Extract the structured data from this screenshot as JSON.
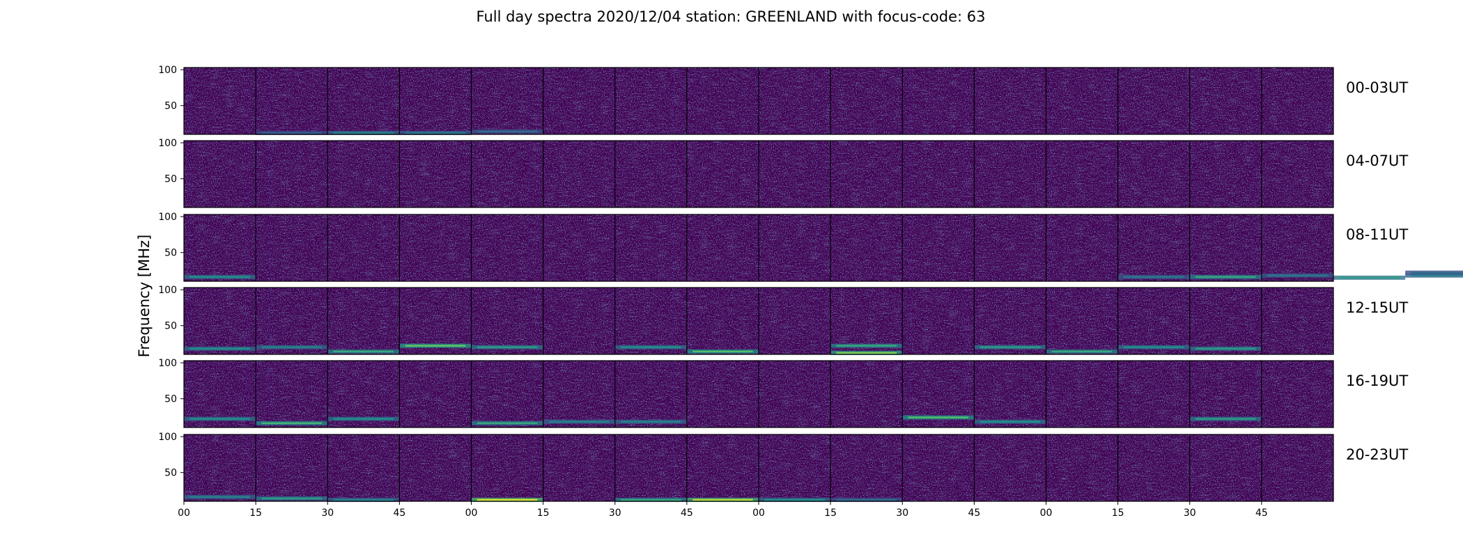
{
  "chart_data": {
    "type": "heatmap",
    "title": "Full day spectra 2020/12/04 station: GREENLAND with focus-code: 63",
    "ylabel": "Frequency [MHz]",
    "xlabel": "",
    "ylim": [
      10,
      103
    ],
    "y_ticks": [
      100,
      50
    ],
    "x_ticks": [
      "00",
      "15",
      "30",
      "45",
      "00",
      "15",
      "30",
      "45",
      "00",
      "15",
      "30",
      "45",
      "00",
      "15",
      "30",
      "45"
    ],
    "colormap": [
      "#440154",
      "#3b528b",
      "#21918c",
      "#5ec962",
      "#fde725"
    ],
    "rows": [
      {
        "label": "00-03UT",
        "lines": [
          {
            "tile": 1,
            "freq": 12,
            "intensity": 0.3
          },
          {
            "tile": 2,
            "freq": 12,
            "intensity": 0.45
          },
          {
            "tile": 3,
            "freq": 12,
            "intensity": 0.4
          },
          {
            "tile": 4,
            "freq": 14,
            "intensity": 0.35
          }
        ]
      },
      {
        "label": "04-07UT",
        "lines": []
      },
      {
        "label": "08-11UT",
        "lines": [
          {
            "tile": 0,
            "freq": 16,
            "intensity": 0.5
          },
          {
            "tile": 13,
            "freq": 16,
            "intensity": 0.4
          },
          {
            "tile": 14,
            "freq": 16,
            "intensity": 0.6
          },
          {
            "tile": 15,
            "freq": 18,
            "intensity": 0.4
          },
          {
            "tile": 16,
            "freq": 15,
            "intensity": 0.55
          },
          {
            "tile": 17,
            "freq": 18,
            "intensity": 0.45
          },
          {
            "tile": 17,
            "freq": 22,
            "intensity": 0.35
          }
        ]
      },
      {
        "label": "12-15UT",
        "lines": [
          {
            "tile": 0,
            "freq": 18,
            "intensity": 0.5
          },
          {
            "tile": 1,
            "freq": 20,
            "intensity": 0.45
          },
          {
            "tile": 2,
            "freq": 14,
            "intensity": 0.6
          },
          {
            "tile": 3,
            "freq": 22,
            "intensity": 0.75
          },
          {
            "tile": 4,
            "freq": 20,
            "intensity": 0.55
          },
          {
            "tile": 6,
            "freq": 20,
            "intensity": 0.5
          },
          {
            "tile": 7,
            "freq": 14,
            "intensity": 0.7
          },
          {
            "tile": 9,
            "freq": 12,
            "intensity": 0.8
          },
          {
            "tile": 9,
            "freq": 22,
            "intensity": 0.6
          },
          {
            "tile": 11,
            "freq": 20,
            "intensity": 0.55
          },
          {
            "tile": 12,
            "freq": 14,
            "intensity": 0.6
          },
          {
            "tile": 13,
            "freq": 20,
            "intensity": 0.5
          },
          {
            "tile": 14,
            "freq": 18,
            "intensity": 0.55
          }
        ]
      },
      {
        "label": "16-19UT",
        "lines": [
          {
            "tile": 0,
            "freq": 22,
            "intensity": 0.5
          },
          {
            "tile": 1,
            "freq": 16,
            "intensity": 0.65
          },
          {
            "tile": 2,
            "freq": 22,
            "intensity": 0.5
          },
          {
            "tile": 4,
            "freq": 16,
            "intensity": 0.6
          },
          {
            "tile": 5,
            "freq": 18,
            "intensity": 0.45
          },
          {
            "tile": 6,
            "freq": 18,
            "intensity": 0.45
          },
          {
            "tile": 10,
            "freq": 24,
            "intensity": 0.7
          },
          {
            "tile": 11,
            "freq": 18,
            "intensity": 0.5
          },
          {
            "tile": 14,
            "freq": 22,
            "intensity": 0.55
          }
        ]
      },
      {
        "label": "20-23UT",
        "lines": [
          {
            "tile": 0,
            "freq": 16,
            "intensity": 0.45
          },
          {
            "tile": 1,
            "freq": 14,
            "intensity": 0.55
          },
          {
            "tile": 2,
            "freq": 12,
            "intensity": 0.45
          },
          {
            "tile": 4,
            "freq": 12,
            "intensity": 0.95
          },
          {
            "tile": 6,
            "freq": 12,
            "intensity": 0.6
          },
          {
            "tile": 7,
            "freq": 12,
            "intensity": 0.9
          },
          {
            "tile": 8,
            "freq": 12,
            "intensity": 0.5
          },
          {
            "tile": 9,
            "freq": 12,
            "intensity": 0.35
          }
        ]
      }
    ]
  }
}
